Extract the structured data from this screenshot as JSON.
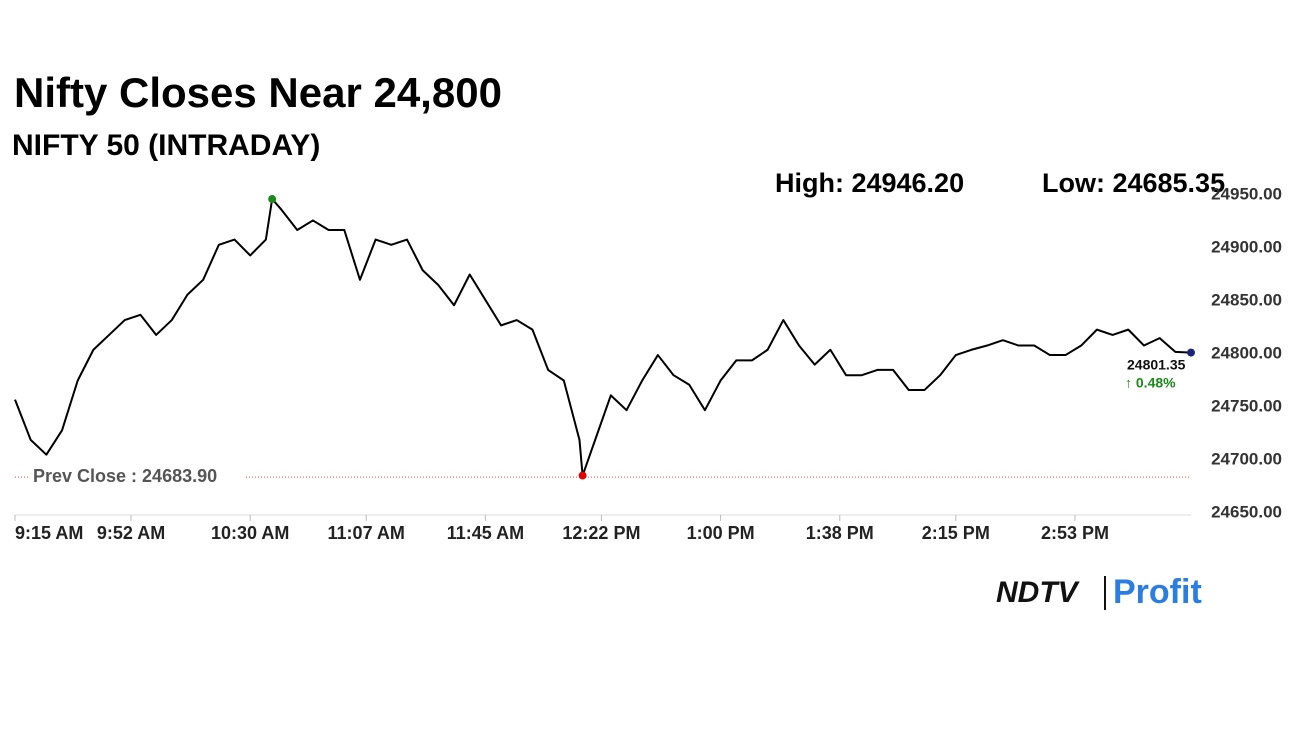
{
  "chart_data": {
    "type": "line",
    "title": "Nifty Closes Near 24,800",
    "subtitle": "NIFTY 50 (INTRADAY)",
    "high_label": "High: 24946.20",
    "low_label": "Low: 24685.35",
    "prev_close": 24683.9,
    "prev_close_label": "Prev Close : 24683.90",
    "prev_close_color": "#d9534f",
    "last_label": "24801.35",
    "change_label": "↑ 0.48%",
    "change_color": "#1a8a1a",
    "logo": {
      "left": "NDTV",
      "right": "Profit"
    },
    "marker_colors": {
      "high": "#1a8a1a",
      "low": "#e00000",
      "last": "#1a237e"
    },
    "xlim": [
      0,
      375
    ],
    "xticks": [
      {
        "value": 0,
        "label": "9:15 AM"
      },
      {
        "value": 37,
        "label": "9:52 AM"
      },
      {
        "value": 75,
        "label": "10:30 AM"
      },
      {
        "value": 112,
        "label": "11:07 AM"
      },
      {
        "value": 150,
        "label": "11:45 AM"
      },
      {
        "value": 187,
        "label": "12:22 PM"
      },
      {
        "value": 225,
        "label": "1:00 PM"
      },
      {
        "value": 263,
        "label": "1:38 PM"
      },
      {
        "value": 300,
        "label": "2:15 PM"
      },
      {
        "value": 338,
        "label": "2:53 PM"
      }
    ],
    "ylim": [
      24650,
      24950
    ],
    "yticks": [
      {
        "value": 24650,
        "label": "24650.00"
      },
      {
        "value": 24700,
        "label": "24700.00"
      },
      {
        "value": 24750,
        "label": "24750.00"
      },
      {
        "value": 24800,
        "label": "24800.00"
      },
      {
        "value": 24850,
        "label": "24850.00"
      },
      {
        "value": 24900,
        "label": "24900.00"
      },
      {
        "value": 24950,
        "label": "24950.00"
      }
    ],
    "series": [
      {
        "color": "#000000",
        "x": [
          0,
          5,
          10,
          15,
          20,
          25,
          30,
          35,
          40,
          45,
          50,
          55,
          60,
          65,
          70,
          75,
          80,
          82,
          85,
          90,
          95,
          100,
          105,
          110,
          115,
          120,
          125,
          130,
          135,
          140,
          145,
          150,
          155,
          160,
          165,
          170,
          175,
          180,
          181,
          185,
          190,
          195,
          200,
          205,
          210,
          215,
          220,
          225,
          230,
          235,
          240,
          245,
          250,
          255,
          260,
          265,
          270,
          275,
          280,
          285,
          290,
          295,
          300,
          305,
          310,
          315,
          320,
          325,
          330,
          335,
          340,
          345,
          350,
          355,
          360,
          365,
          370,
          375
        ],
        "values": [
          24757,
          24719,
          24705,
          24728,
          24775,
          24804,
          24818,
          24832,
          24837,
          24818,
          24832,
          24856,
          24870,
          24903,
          24908,
          24893,
          24908,
          24946.2,
          24936,
          24917,
          24926,
          24917,
          24917,
          24870,
          24908,
          24903,
          24908,
          24879,
          24865,
          24846,
          24875,
          24851,
          24827,
          24832,
          24823,
          24785,
          24775,
          24719,
          24685.35,
          24719,
          24761,
          24747,
          24775,
          24799,
          24780,
          24771,
          24747,
          24775,
          24794,
          24794,
          24804,
          24832,
          24808,
          24790,
          24804,
          24780,
          24780,
          24785,
          24785,
          24766,
          24766,
          24780,
          24799,
          24804,
          24808,
          24813,
          24808,
          24808,
          24799,
          24799,
          24808,
          24823,
          24818,
          24823,
          24808,
          24815,
          24802,
          24801.35
        ]
      }
    ]
  }
}
